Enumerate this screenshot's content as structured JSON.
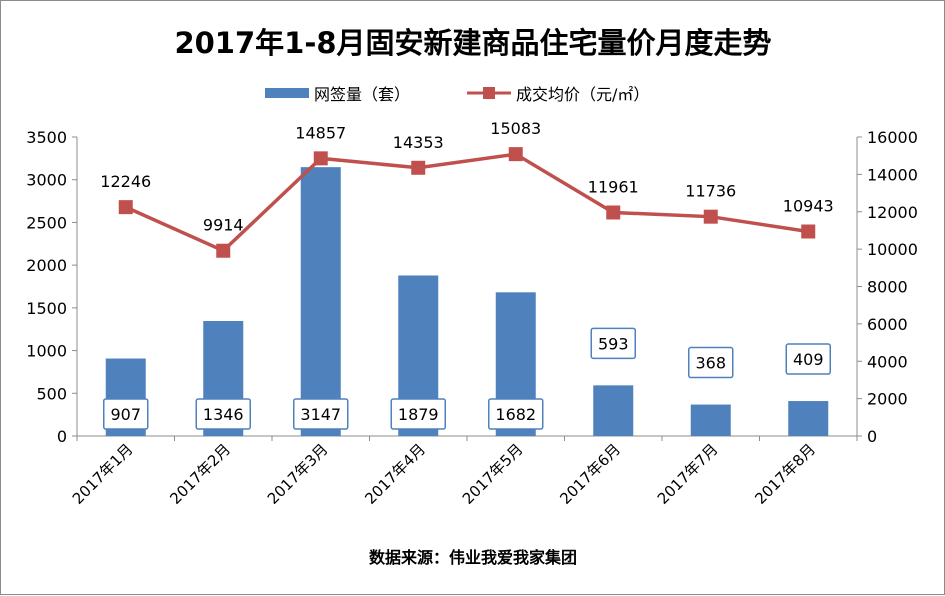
{
  "chart_data": {
    "type": "bar+line",
    "title": "2017年1-8月固安新建商品住宅量价月度走势",
    "source": "数据来源：伟业我爱我家集团",
    "categories": [
      "2017年1月",
      "2017年2月",
      "2017年3月",
      "2017年4月",
      "2017年5月",
      "2017年6月",
      "2017年7月",
      "2017年8月"
    ],
    "series": [
      {
        "name": "网签量（套）",
        "type": "bar",
        "axis": "left",
        "color": "#4f81bd",
        "values": [
          907,
          1346,
          3147,
          1879,
          1682,
          593,
          368,
          409
        ]
      },
      {
        "name": "成交均价（元/㎡）",
        "type": "line",
        "axis": "right",
        "color": "#c0504d",
        "values": [
          12246,
          9914,
          14857,
          14353,
          15083,
          11961,
          11736,
          10943
        ]
      }
    ],
    "y_left": {
      "min": 0,
      "max": 3500,
      "step": 500,
      "ticks": [
        "0",
        "500",
        "1000",
        "1500",
        "2000",
        "2500",
        "3000",
        "3500"
      ]
    },
    "y_right": {
      "min": 0,
      "max": 16000,
      "step": 2000,
      "ticks": [
        "0",
        "2000",
        "4000",
        "6000",
        "8000",
        "10000",
        "12000",
        "14000",
        "16000"
      ]
    },
    "legend_position": "top",
    "grid": false
  }
}
